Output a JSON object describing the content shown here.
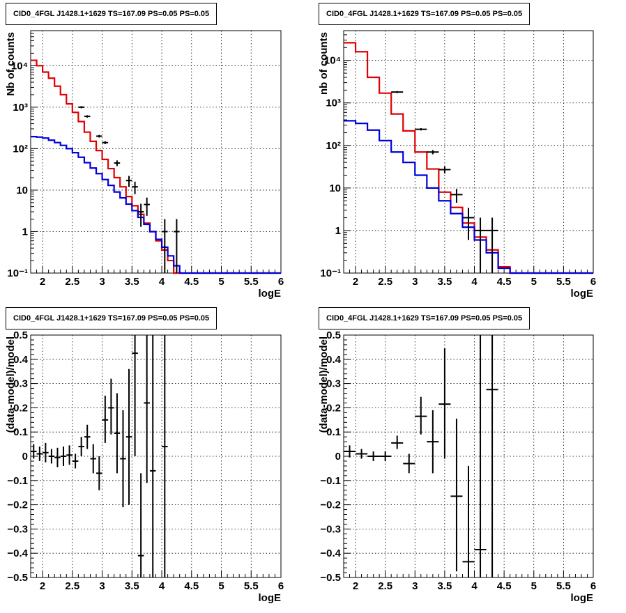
{
  "chart_data": [
    {
      "type": "step-histogram",
      "title": "CID0_4FGL J1428.1+1629 TS=167.09 PS=0.05 PS=0.05",
      "xlabel": "logE",
      "ylabel": "Nb of counts",
      "xlim": [
        1.8,
        6
      ],
      "ylim": [
        0.1,
        70000
      ],
      "yscale": "log",
      "grid": true,
      "xticks": [
        "2",
        "2.5",
        "3",
        "3.5",
        "4",
        "4.5",
        "5",
        "5.5",
        "6"
      ],
      "yticks": [
        {
          "v": 0.1,
          "label": "10⁻¹"
        },
        {
          "v": 1,
          "label": "1"
        },
        {
          "v": 10,
          "label": "10"
        },
        {
          "v": 100,
          "label": "10²"
        },
        {
          "v": 1000,
          "label": "10³"
        },
        {
          "v": 10000,
          "label": "10⁴"
        }
      ],
      "bin_edges": [
        1.8,
        1.9,
        2.0,
        2.1,
        2.2,
        2.3,
        2.4,
        2.5,
        2.6,
        2.7,
        2.8,
        2.9,
        3.0,
        3.1,
        3.2,
        3.3,
        3.4,
        3.5,
        3.6,
        3.7,
        3.8,
        3.9,
        4.0,
        4.1,
        4.2,
        4.3,
        4.4,
        4.5,
        4.6,
        4.7,
        4.8,
        4.9,
        5.0,
        5.1,
        5.2,
        5.3,
        5.4,
        5.5,
        5.6,
        5.7,
        5.8,
        5.9,
        6.0
      ],
      "series": [
        {
          "name": "model",
          "color": "#e00000",
          "values": [
            13500,
            10000,
            7000,
            5000,
            3200,
            2000,
            1200,
            750,
            450,
            250,
            150,
            90,
            55,
            33,
            20,
            12,
            7,
            4.2,
            2.6,
            1.6,
            1.0,
            0.6,
            0.36,
            0.2,
            0.1,
            0.1,
            0.1,
            0.1,
            0.1,
            0.1,
            0.1,
            0.1,
            0.1,
            0.1,
            0.1,
            0.1,
            0.1,
            0.1,
            0.1,
            0.1,
            0.1,
            0.1
          ]
        },
        {
          "name": "background",
          "color": "#0000dd",
          "values": [
            195,
            190,
            180,
            160,
            140,
            120,
            100,
            80,
            62,
            46,
            34,
            25,
            18,
            13,
            9,
            6.5,
            4.6,
            3.2,
            2.2,
            1.5,
            1.0,
            0.65,
            0.42,
            0.26,
            0.15,
            0.1,
            0.1,
            0.1,
            0.1,
            0.1,
            0.1,
            0.1,
            0.1,
            0.1,
            0.1,
            0.1,
            0.1,
            0.1,
            0.1,
            0.1,
            0.1,
            0.1
          ]
        }
      ],
      "points": [
        {
          "x": 2.65,
          "y": 1000,
          "xerr": 0.05,
          "lo": 940,
          "hi": 1060
        },
        {
          "x": 2.75,
          "y": 600,
          "xerr": 0.05,
          "lo": 560,
          "hi": 640
        },
        {
          "x": 2.95,
          "y": 200,
          "xerr": 0.05,
          "lo": 185,
          "hi": 215
        },
        {
          "x": 3.05,
          "y": 140,
          "xerr": 0.05,
          "lo": 128,
          "hi": 152
        },
        {
          "x": 3.25,
          "y": 45,
          "xerr": 0.05,
          "lo": 38,
          "hi": 52
        },
        {
          "x": 3.45,
          "y": 17,
          "xerr": 0.05,
          "lo": 12,
          "hi": 22
        },
        {
          "x": 3.55,
          "y": 12,
          "xerr": 0.05,
          "lo": 8,
          "hi": 16
        },
        {
          "x": 3.65,
          "y": 3,
          "xerr": 0.05,
          "lo": 1.3,
          "hi": 4.7
        },
        {
          "x": 3.75,
          "y": 4.5,
          "xerr": 0.05,
          "lo": 2.4,
          "hi": 6.6
        },
        {
          "x": 4.05,
          "y": 1,
          "xerr": 0.05,
          "lo": 0.1,
          "hi": 2
        },
        {
          "x": 4.25,
          "y": 1,
          "xerr": 0.05,
          "lo": 0.1,
          "hi": 2
        }
      ]
    },
    {
      "type": "step-histogram",
      "title": "CID0_4FGL J1428.1+1629 TS=167.09 PS=0.05 PS=0.05",
      "xlabel": "logE",
      "ylabel": "nb of counts",
      "xlim": [
        1.8,
        6
      ],
      "ylim": [
        0.1,
        50000
      ],
      "yscale": "log",
      "grid": true,
      "xticks": [
        "2",
        "2.5",
        "3",
        "3.5",
        "4",
        "4.5",
        "5",
        "5.5",
        "6"
      ],
      "yticks": [
        {
          "v": 0.1,
          "label": "10⁻¹"
        },
        {
          "v": 1,
          "label": "1"
        },
        {
          "v": 10,
          "label": "10"
        },
        {
          "v": 100,
          "label": "10²"
        },
        {
          "v": 1000,
          "label": "10³"
        },
        {
          "v": 10000,
          "label": "10⁴"
        }
      ],
      "bin_edges": [
        1.8,
        2.0,
        2.2,
        2.4,
        2.6,
        2.8,
        3.0,
        3.2,
        3.4,
        3.6,
        3.8,
        4.0,
        4.2,
        4.4,
        4.6,
        4.8,
        5.0,
        5.2,
        5.4,
        5.6,
        5.8,
        6.0
      ],
      "series": [
        {
          "name": "model",
          "color": "#e00000",
          "values": [
            26000,
            16000,
            4000,
            1700,
            550,
            220,
            70,
            28,
            8,
            3.5,
            1.5,
            0.7,
            0.35,
            0.14,
            0.1,
            0.1,
            0.1,
            0.1,
            0.1,
            0.1,
            0.1
          ]
        },
        {
          "name": "background",
          "color": "#0000dd",
          "values": [
            380,
            330,
            230,
            130,
            70,
            40,
            20,
            10,
            5,
            2.5,
            1.2,
            0.6,
            0.3,
            0.13,
            0.1,
            0.1,
            0.1,
            0.1,
            0.1,
            0.1,
            0.1
          ]
        }
      ],
      "points": [
        {
          "x": 2.7,
          "y": 1800,
          "xerr": 0.1,
          "lo": 1700,
          "hi": 1900
        },
        {
          "x": 3.1,
          "y": 240,
          "xerr": 0.1,
          "lo": 225,
          "hi": 255
        },
        {
          "x": 3.3,
          "y": 70,
          "xerr": 0.1,
          "lo": 62,
          "hi": 78
        },
        {
          "x": 3.5,
          "y": 27,
          "xerr": 0.1,
          "lo": 22,
          "hi": 32
        },
        {
          "x": 3.7,
          "y": 7,
          "xerr": 0.1,
          "lo": 4.5,
          "hi": 9.5
        },
        {
          "x": 3.9,
          "y": 2,
          "xerr": 0.1,
          "lo": 0.6,
          "hi": 3.4
        },
        {
          "x": 4.1,
          "y": 1,
          "xerr": 0.1,
          "lo": 0.1,
          "hi": 2
        },
        {
          "x": 4.3,
          "y": 1,
          "xerr": 0.1,
          "lo": 0.1,
          "hi": 2
        }
      ]
    },
    {
      "type": "scatter-errorbars",
      "title": "CID0_4FGL J1428.1+1629 TS=167.09 PS=0.05 PS=0.05",
      "xlabel": "logE",
      "ylabel": "(data-model)/model",
      "xlim": [
        1.8,
        6
      ],
      "ylim": [
        -0.5,
        0.5
      ],
      "yscale": "linear",
      "grid": true,
      "xticks": [
        "2",
        "2.5",
        "3",
        "3.5",
        "4",
        "4.5",
        "5",
        "5.5",
        "6"
      ],
      "yticks": [
        {
          "v": -0.5,
          "label": "−0.5"
        },
        {
          "v": -0.4,
          "label": "−0.4"
        },
        {
          "v": -0.3,
          "label": "−0.3"
        },
        {
          "v": -0.2,
          "label": "−0.2"
        },
        {
          "v": -0.1,
          "label": "−0.1"
        },
        {
          "v": 0,
          "label": "0"
        },
        {
          "v": 0.1,
          "label": "0.1"
        },
        {
          "v": 0.2,
          "label": "0.2"
        },
        {
          "v": 0.3,
          "label": "0.3"
        },
        {
          "v": 0.4,
          "label": "0.4"
        },
        {
          "v": 0.5,
          "label": "0.5"
        }
      ],
      "points": [
        {
          "x": 1.85,
          "y": 0.02,
          "xerr": 0.05,
          "lo": -0.01,
          "hi": 0.05
        },
        {
          "x": 1.95,
          "y": 0.01,
          "xerr": 0.05,
          "lo": -0.02,
          "hi": 0.04
        },
        {
          "x": 2.05,
          "y": 0.015,
          "xerr": 0.05,
          "lo": -0.025,
          "hi": 0.055
        },
        {
          "x": 2.15,
          "y": 0.0,
          "xerr": 0.05,
          "lo": -0.03,
          "hi": 0.03
        },
        {
          "x": 2.25,
          "y": -0.005,
          "xerr": 0.05,
          "lo": -0.045,
          "hi": 0.035
        },
        {
          "x": 2.35,
          "y": 0.0,
          "xerr": 0.05,
          "lo": -0.04,
          "hi": 0.04
        },
        {
          "x": 2.45,
          "y": 0.005,
          "xerr": 0.05,
          "lo": -0.035,
          "hi": 0.045
        },
        {
          "x": 2.55,
          "y": -0.02,
          "xerr": 0.05,
          "lo": -0.05,
          "hi": 0.01
        },
        {
          "x": 2.65,
          "y": 0.04,
          "xerr": 0.05,
          "lo": 0.0,
          "hi": 0.08
        },
        {
          "x": 2.75,
          "y": 0.08,
          "xerr": 0.05,
          "lo": 0.03,
          "hi": 0.13
        },
        {
          "x": 2.85,
          "y": -0.01,
          "xerr": 0.05,
          "lo": -0.07,
          "hi": 0.05
        },
        {
          "x": 2.95,
          "y": -0.07,
          "xerr": 0.05,
          "lo": -0.14,
          "hi": 0.0
        },
        {
          "x": 3.05,
          "y": 0.15,
          "xerr": 0.05,
          "lo": 0.055,
          "hi": 0.25
        },
        {
          "x": 3.15,
          "y": 0.2,
          "xerr": 0.05,
          "lo": 0.09,
          "hi": 0.32
        },
        {
          "x": 3.25,
          "y": 0.095,
          "xerr": 0.05,
          "lo": -0.07,
          "hi": 0.26
        },
        {
          "x": 3.35,
          "y": -0.01,
          "xerr": 0.05,
          "lo": -0.21,
          "hi": 0.19
        },
        {
          "x": 3.45,
          "y": 0.08,
          "xerr": 0.05,
          "lo": -0.2,
          "hi": 0.36
        },
        {
          "x": 3.55,
          "y": 0.425,
          "xerr": 0.05,
          "lo": 0.0,
          "hi": 0.5
        },
        {
          "x": 3.65,
          "y": -0.41,
          "xerr": 0.05,
          "lo": -0.5,
          "hi": -0.07
        },
        {
          "x": 3.75,
          "y": 0.22,
          "xerr": 0.05,
          "lo": -0.11,
          "hi": 0.5
        },
        {
          "x": 3.85,
          "y": -0.06,
          "xerr": 0.05,
          "lo": -0.5,
          "hi": 0.5
        },
        {
          "x": 4.05,
          "y": 0.04,
          "xerr": 0.05,
          "lo": -0.5,
          "hi": 0.5
        }
      ]
    },
    {
      "type": "scatter-errorbars",
      "title": "CID0_4FGL J1428.1+1629 TS=167.09 PS=0.05 PS=0.05",
      "xlabel": "logE",
      "ylabel": "(data-model)/model",
      "xlim": [
        1.8,
        6
      ],
      "ylim": [
        -0.5,
        0.5
      ],
      "yscale": "linear",
      "grid": true,
      "xticks": [
        "2",
        "2.5",
        "3",
        "3.5",
        "4",
        "4.5",
        "5",
        "5.5",
        "6"
      ],
      "yticks": [
        {
          "v": -0.5,
          "label": "−0.5"
        },
        {
          "v": -0.4,
          "label": "−0.4"
        },
        {
          "v": -0.3,
          "label": "−0.3"
        },
        {
          "v": -0.2,
          "label": "−0.2"
        },
        {
          "v": -0.1,
          "label": "−0.1"
        },
        {
          "v": 0,
          "label": "0"
        },
        {
          "v": 0.1,
          "label": "0.1"
        },
        {
          "v": 0.2,
          "label": "0.2"
        },
        {
          "v": 0.3,
          "label": "0.3"
        },
        {
          "v": 0.4,
          "label": "0.4"
        },
        {
          "v": 0.5,
          "label": "0.5"
        }
      ],
      "points": [
        {
          "x": 1.9,
          "y": 0.02,
          "xerr": 0.1,
          "lo": -0.005,
          "hi": 0.045
        },
        {
          "x": 2.1,
          "y": 0.01,
          "xerr": 0.1,
          "lo": -0.01,
          "hi": 0.03
        },
        {
          "x": 2.3,
          "y": 0.0,
          "xerr": 0.1,
          "lo": -0.02,
          "hi": 0.02
        },
        {
          "x": 2.5,
          "y": 0.0,
          "xerr": 0.1,
          "lo": -0.02,
          "hi": 0.02
        },
        {
          "x": 2.7,
          "y": 0.055,
          "xerr": 0.1,
          "lo": 0.03,
          "hi": 0.085
        },
        {
          "x": 2.9,
          "y": -0.03,
          "xerr": 0.1,
          "lo": -0.07,
          "hi": 0.01
        },
        {
          "x": 3.1,
          "y": 0.165,
          "xerr": 0.1,
          "lo": 0.09,
          "hi": 0.245
        },
        {
          "x": 3.3,
          "y": 0.06,
          "xerr": 0.1,
          "lo": -0.07,
          "hi": 0.19
        },
        {
          "x": 3.5,
          "y": 0.215,
          "xerr": 0.1,
          "lo": -0.01,
          "hi": 0.445
        },
        {
          "x": 3.7,
          "y": -0.165,
          "xerr": 0.1,
          "lo": -0.475,
          "hi": 0.155
        },
        {
          "x": 3.9,
          "y": -0.435,
          "xerr": 0.1,
          "lo": -0.5,
          "hi": -0.04
        },
        {
          "x": 4.1,
          "y": -0.385,
          "xerr": 0.1,
          "lo": -0.5,
          "hi": 0.5
        },
        {
          "x": 4.3,
          "y": 0.275,
          "xerr": 0.1,
          "lo": -0.5,
          "hi": 0.5
        }
      ]
    }
  ]
}
